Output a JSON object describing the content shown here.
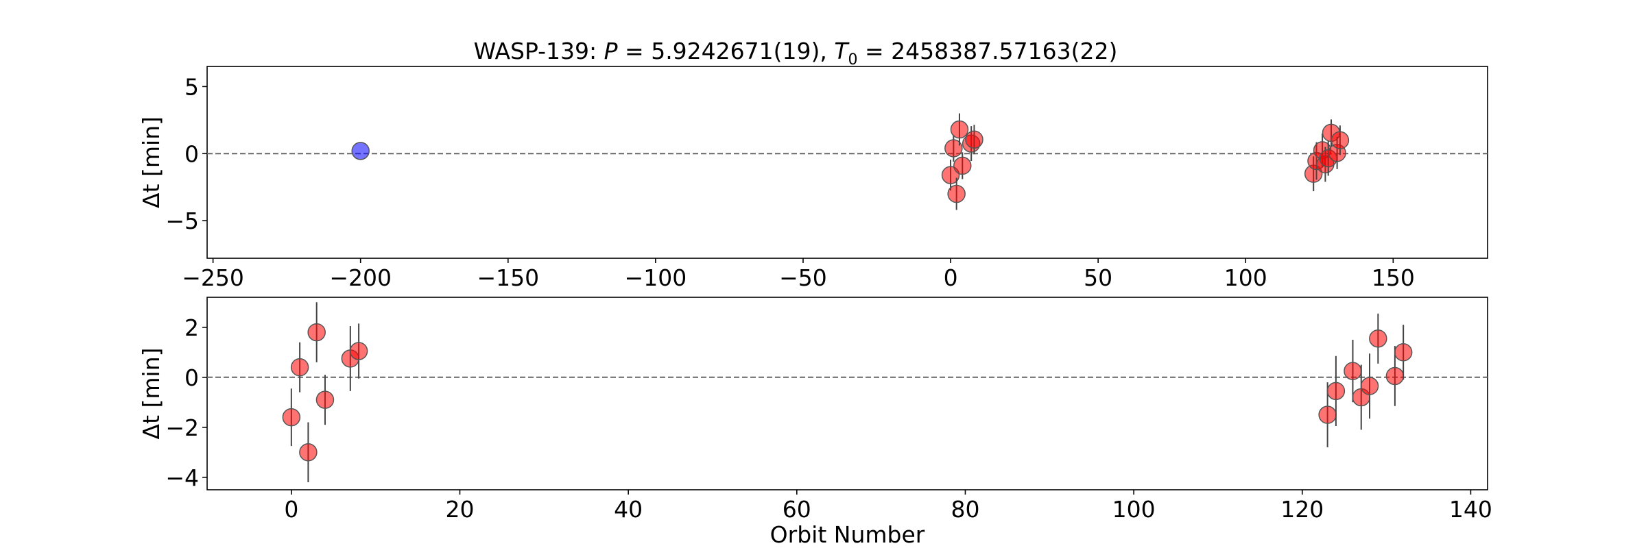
{
  "chart_data": [
    {
      "type": "scatter",
      "title": "WASP-139: P = 5.9242671(19), T0 = 2458387.57163(22)",
      "title_parts": {
        "target": "WASP-139: ",
        "period_symbol": "P",
        "period_value": " = 5.9242671(19), ",
        "epoch_symbol": "T",
        "epoch_subscript": "0",
        "epoch_value": " = 2458387.57163(22)"
      },
      "xlabel": "",
      "ylabel": "Δt [min]",
      "xlim": [
        -252,
        182
      ],
      "ylim": [
        -7.8,
        6.5
      ],
      "xticks": [
        -250,
        -200,
        -150,
        -100,
        -50,
        0,
        50,
        100,
        150
      ],
      "yticks": [
        -5,
        0,
        5
      ],
      "zero_line": true,
      "grid": false,
      "series": [
        {
          "color": "#0000ff",
          "points": [
            {
              "x": -200,
              "y": 0.2,
              "err": 0.0
            }
          ]
        },
        {
          "color": "#ff0000",
          "points": [
            {
              "x": 0,
              "y": -1.6,
              "err": 1.15
            },
            {
              "x": 1,
              "y": 0.4,
              "err": 1.0
            },
            {
              "x": 2,
              "y": -3.0,
              "err": 1.2
            },
            {
              "x": 3,
              "y": 1.8,
              "err": 1.2
            },
            {
              "x": 4,
              "y": -0.9,
              "err": 1.0
            },
            {
              "x": 7,
              "y": 0.75,
              "err": 1.3
            },
            {
              "x": 8,
              "y": 1.05,
              "err": 1.1
            },
            {
              "x": 123,
              "y": -1.5,
              "err": 1.3
            },
            {
              "x": 124,
              "y": -0.55,
              "err": 1.4
            },
            {
              "x": 126,
              "y": 0.25,
              "err": 1.25
            },
            {
              "x": 127,
              "y": -0.8,
              "err": 1.3
            },
            {
              "x": 128,
              "y": -0.35,
              "err": 1.3
            },
            {
              "x": 129,
              "y": 1.55,
              "err": 1.0
            },
            {
              "x": 131,
              "y": 0.05,
              "err": 1.2
            },
            {
              "x": 132,
              "y": 1.0,
              "err": 1.1
            }
          ]
        }
      ]
    },
    {
      "type": "scatter",
      "title": "",
      "xlabel": "Orbit Number",
      "ylabel": "Δt [min]",
      "xlim": [
        -10,
        142
      ],
      "ylim": [
        -4.5,
        3.2
      ],
      "xticks": [
        0,
        20,
        40,
        60,
        80,
        100,
        120,
        140
      ],
      "yticks": [
        -4,
        -2,
        0,
        2
      ],
      "zero_line": true,
      "grid": false,
      "series": [
        {
          "color": "#ff0000",
          "points": [
            {
              "x": 0,
              "y": -1.6,
              "err": 1.15
            },
            {
              "x": 1,
              "y": 0.4,
              "err": 1.0
            },
            {
              "x": 2,
              "y": -3.0,
              "err": 1.2
            },
            {
              "x": 3,
              "y": 1.8,
              "err": 1.2
            },
            {
              "x": 4,
              "y": -0.9,
              "err": 1.0
            },
            {
              "x": 7,
              "y": 0.75,
              "err": 1.3
            },
            {
              "x": 8,
              "y": 1.05,
              "err": 1.1
            },
            {
              "x": 123,
              "y": -1.5,
              "err": 1.3
            },
            {
              "x": 124,
              "y": -0.55,
              "err": 1.4
            },
            {
              "x": 126,
              "y": 0.25,
              "err": 1.25
            },
            {
              "x": 127,
              "y": -0.8,
              "err": 1.3
            },
            {
              "x": 128,
              "y": -0.35,
              "err": 1.3
            },
            {
              "x": 129,
              "y": 1.55,
              "err": 1.0
            },
            {
              "x": 131,
              "y": 0.05,
              "err": 1.2
            },
            {
              "x": 132,
              "y": 1.0,
              "err": 1.1
            }
          ]
        }
      ]
    }
  ]
}
